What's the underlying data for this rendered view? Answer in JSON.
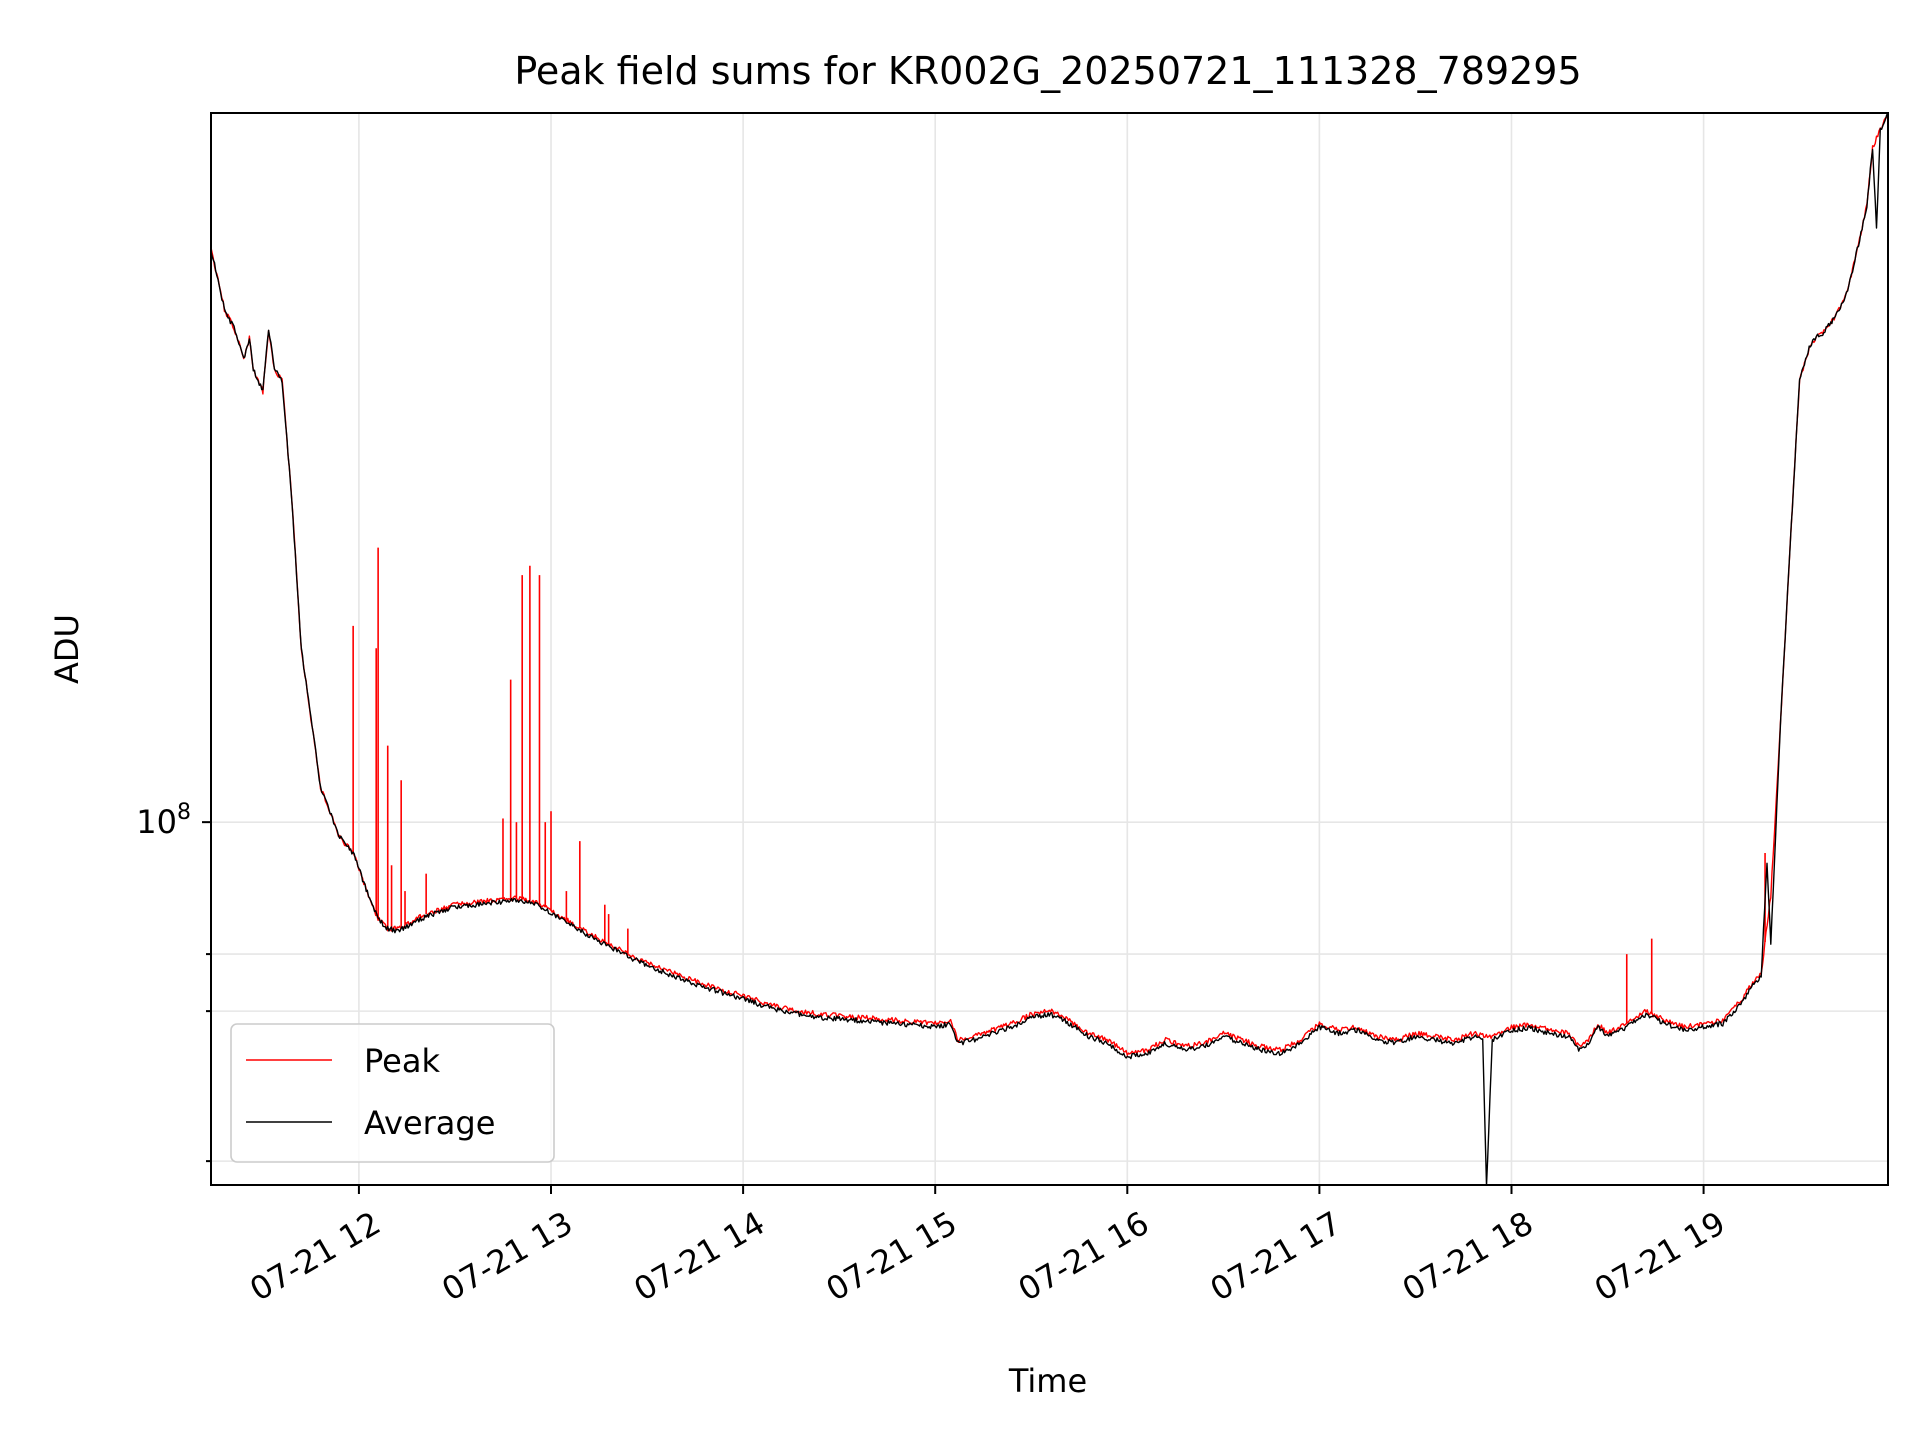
{
  "chart_data": {
    "type": "line",
    "title": "Peak field sums for KR002G_20250721_111328_789295",
    "xlabel": "Time",
    "ylabel": "ADU",
    "y_scale": "log",
    "x_unit": "hour of 2025-07-21",
    "xlim": [
      11.23,
      19.96
    ],
    "ylim": [
      37500000,
      680000000
    ],
    "x_ticks": [
      {
        "value": 12,
        "label": "07-21 12"
      },
      {
        "value": 13,
        "label": "07-21 13"
      },
      {
        "value": 14,
        "label": "07-21 14"
      },
      {
        "value": 15,
        "label": "07-21 15"
      },
      {
        "value": 16,
        "label": "07-21 16"
      },
      {
        "value": 17,
        "label": "07-21 17"
      },
      {
        "value": 18,
        "label": "07-21 18"
      },
      {
        "value": 19,
        "label": "07-21 19"
      }
    ],
    "y_ticks": [
      {
        "value": 100000000,
        "base": "10",
        "exp": "8"
      }
    ],
    "y_minor_ticks": [
      40000000,
      60000000,
      70000000
    ],
    "grid": true,
    "legend_position": "lower-left",
    "series": [
      {
        "name": "Peak",
        "color": "#ff0000",
        "x": [
          11.23,
          11.26,
          11.3,
          11.35,
          11.4,
          11.43,
          11.45,
          11.5,
          11.53,
          11.56,
          11.6,
          11.65,
          11.7,
          11.8,
          11.9,
          11.97,
          12.05,
          12.1,
          12.15,
          12.2,
          12.25,
          12.35,
          12.5,
          12.7,
          12.85,
          12.95,
          13.05,
          13.2,
          13.4,
          13.6,
          13.8,
          14.0,
          14.2,
          14.4,
          14.6,
          14.8,
          15.0,
          15.08,
          15.12,
          15.2,
          15.3,
          15.4,
          15.5,
          15.6,
          15.7,
          15.8,
          15.9,
          16.0,
          16.1,
          16.2,
          16.3,
          16.4,
          16.5,
          16.6,
          16.7,
          16.8,
          16.9,
          17.0,
          17.1,
          17.2,
          17.3,
          17.4,
          17.5,
          17.6,
          17.7,
          17.8,
          17.9,
          18.0,
          18.1,
          18.2,
          18.3,
          18.35,
          18.4,
          18.45,
          18.5,
          18.6,
          18.7,
          18.8,
          18.9,
          19.0,
          19.1,
          19.2,
          19.25,
          19.3,
          19.35,
          19.4,
          19.45,
          19.5,
          19.55,
          19.58,
          19.62,
          19.68,
          19.75,
          19.8,
          19.85,
          19.88,
          19.92,
          19.96
        ],
        "y": [
          470000000,
          440000000,
          400000000,
          380000000,
          350000000,
          370000000,
          340000000,
          320000000,
          380000000,
          340000000,
          330000000,
          240000000,
          160000000,
          110000000,
          96000000,
          92000000,
          82000000,
          77000000,
          75000000,
          75000000,
          76000000,
          78000000,
          80000000,
          81000000,
          81500000,
          80000000,
          77500000,
          74000000,
          70000000,
          67000000,
          64500000,
          62500000,
          60500000,
          59500000,
          59000000,
          58500000,
          58000000,
          58500000,
          55500000,
          56000000,
          57000000,
          58000000,
          59500000,
          60000000,
          58500000,
          56500000,
          55500000,
          53500000,
          54000000,
          55500000,
          54500000,
          55000000,
          56500000,
          55500000,
          54500000,
          54000000,
          55500000,
          58000000,
          57000000,
          57500000,
          56000000,
          55500000,
          56500000,
          56000000,
          55500000,
          56500000,
          56000000,
          57500000,
          57800000,
          57000000,
          56500000,
          54500000,
          55500000,
          58000000,
          56500000,
          58000000,
          60000000,
          58500000,
          57500000,
          58000000,
          58500000,
          62000000,
          64500000,
          66500000,
          82000000,
          130000000,
          210000000,
          330000000,
          360000000,
          370000000,
          375000000,
          390000000,
          420000000,
          470000000,
          530000000,
          620000000,
          650000000,
          680000000
        ],
        "spikes": [
          [
            11.97,
            170000000
          ],
          [
            12.09,
            160000000
          ],
          [
            12.1,
            210000000
          ],
          [
            12.15,
            123000000
          ],
          [
            12.17,
            89000000
          ],
          [
            12.22,
            112000000
          ],
          [
            12.24,
            83000000
          ],
          [
            12.35,
            87000000
          ],
          [
            12.75,
            101000000
          ],
          [
            12.79,
            147000000
          ],
          [
            12.82,
            100000000
          ],
          [
            12.85,
            195000000
          ],
          [
            12.89,
            200000000
          ],
          [
            12.94,
            195000000
          ],
          [
            12.97,
            100000000
          ],
          [
            13.0,
            103000000
          ],
          [
            13.08,
            83000000
          ],
          [
            13.15,
            95000000
          ],
          [
            13.28,
            80000000
          ],
          [
            13.3,
            78000000
          ],
          [
            13.4,
            75000000
          ],
          [
            18.6,
            70000000
          ],
          [
            18.73,
            73000000
          ],
          [
            19.32,
            92000000
          ]
        ]
      },
      {
        "name": "Average",
        "color": "#000000",
        "x": [
          11.23,
          11.26,
          11.3,
          11.35,
          11.4,
          11.43,
          11.45,
          11.5,
          11.53,
          11.56,
          11.6,
          11.65,
          11.7,
          11.8,
          11.9,
          11.97,
          12.05,
          12.1,
          12.15,
          12.2,
          12.25,
          12.35,
          12.5,
          12.7,
          12.85,
          12.95,
          13.05,
          13.2,
          13.4,
          13.6,
          13.8,
          14.0,
          14.2,
          14.4,
          14.6,
          14.8,
          15.0,
          15.08,
          15.12,
          15.2,
          15.3,
          15.4,
          15.5,
          15.6,
          15.7,
          15.8,
          15.9,
          16.0,
          16.1,
          16.2,
          16.3,
          16.4,
          16.5,
          16.6,
          16.7,
          16.8,
          16.9,
          17.0,
          17.1,
          17.2,
          17.3,
          17.4,
          17.5,
          17.6,
          17.7,
          17.8,
          17.85,
          17.87,
          17.9,
          18.0,
          18.1,
          18.2,
          18.3,
          18.35,
          18.4,
          18.45,
          18.5,
          18.6,
          18.7,
          18.8,
          18.9,
          19.0,
          19.1,
          19.2,
          19.25,
          19.3,
          19.33,
          19.35,
          19.4,
          19.45,
          19.5,
          19.55,
          19.58,
          19.62,
          19.68,
          19.75,
          19.8,
          19.85,
          19.88,
          19.9,
          19.92,
          19.96
        ],
        "y": [
          470000000,
          440000000,
          400000000,
          380000000,
          350000000,
          370000000,
          340000000,
          320000000,
          380000000,
          340000000,
          330000000,
          240000000,
          160000000,
          110000000,
          96000000,
          92000000,
          82000000,
          77000000,
          75000000,
          74500000,
          75500000,
          77500000,
          79500000,
          80500000,
          81000000,
          79500000,
          77000000,
          73500000,
          69500000,
          66500000,
          64000000,
          62000000,
          60000000,
          59000000,
          58500000,
          58000000,
          57500000,
          58000000,
          55000000,
          55500000,
          56500000,
          57500000,
          59000000,
          59500000,
          58000000,
          56000000,
          55000000,
          53000000,
          53500000,
          55000000,
          54000000,
          54500000,
          56000000,
          55000000,
          54000000,
          53500000,
          55000000,
          57500000,
          56500000,
          57000000,
          55500000,
          55000000,
          56000000,
          55500000,
          55000000,
          56000000,
          55500000,
          37500000,
          55500000,
          57000000,
          57300000,
          56500000,
          56000000,
          54000000,
          55000000,
          57500000,
          56000000,
          57500000,
          59500000,
          58000000,
          57000000,
          57500000,
          58000000,
          61500000,
          64000000,
          66000000,
          90000000,
          72000000,
          130000000,
          210000000,
          330000000,
          360000000,
          370000000,
          375000000,
          390000000,
          420000000,
          470000000,
          530000000,
          620000000,
          500000000,
          650000000,
          680000000
        ]
      }
    ]
  }
}
